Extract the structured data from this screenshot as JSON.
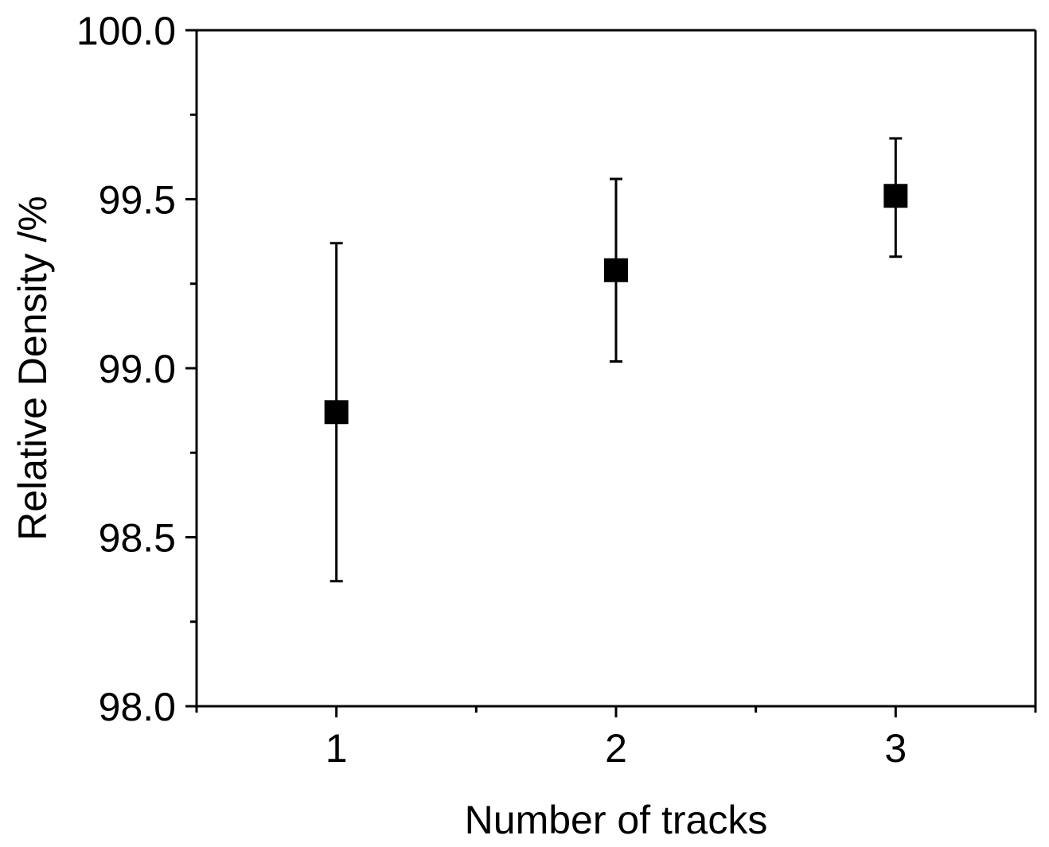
{
  "chart_data": {
    "type": "scatter",
    "title": "",
    "xlabel": "Number of tracks",
    "ylabel": "Relative Density /%",
    "xlim": [
      0.5,
      3.5
    ],
    "ylim": [
      98.0,
      100.0
    ],
    "x_ticks": [
      1,
      2,
      3
    ],
    "x_tick_labels": [
      "1",
      "2",
      "3"
    ],
    "x_minor_ticks": [
      0.5,
      1.5,
      2.5,
      3.5
    ],
    "y_ticks": [
      98.0,
      98.5,
      99.0,
      99.5,
      100.0
    ],
    "y_tick_labels": [
      "98.0",
      "98.5",
      "99.0",
      "99.5",
      "100.0"
    ],
    "y_minor_ticks": [
      98.25,
      98.75,
      99.25,
      99.75
    ],
    "grid": false,
    "legend": "none",
    "marker": "square",
    "color": "#000000",
    "series": [
      {
        "x": [
          1,
          2,
          3
        ],
        "y": [
          98.87,
          99.29,
          99.51
        ],
        "error_lower": [
          98.37,
          99.02,
          99.33
        ],
        "error_upper": [
          99.37,
          99.56,
          99.68
        ]
      }
    ]
  }
}
